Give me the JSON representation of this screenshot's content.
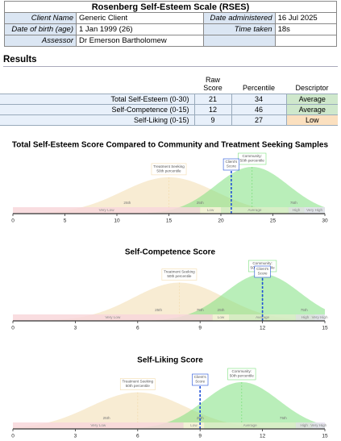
{
  "header": {
    "title": "Rosenberg Self-Esteem Scale (RSES)",
    "left": [
      {
        "label": "Client Name",
        "value": "Generic Client"
      },
      {
        "label": "Date of birth (age)",
        "value": "1 Jan 1999 (26)"
      },
      {
        "label": "Assessor",
        "value": "Dr Emerson Bartholomew"
      }
    ],
    "right": [
      {
        "label": "Date administered",
        "value": "16 Jul 2025"
      },
      {
        "label": "Time taken",
        "value": "18s"
      }
    ]
  },
  "results": {
    "title": "Results",
    "columns": [
      "Raw Score",
      "Percentile",
      "Descriptor"
    ],
    "rows": [
      {
        "label": "Total Self-Esteem (0-30)",
        "raw": 21,
        "percentile": 34,
        "descriptor": "Average",
        "color": "#cfe8cc"
      },
      {
        "label": "Self-Competence (0-15)",
        "raw": 12,
        "percentile": 46,
        "descriptor": "Average",
        "color": "#cfe8cc"
      },
      {
        "label": "Self-Liking (0-15)",
        "raw": 9,
        "percentile": 27,
        "descriptor": "Low",
        "color": "#fbe0bf"
      }
    ]
  },
  "chart_data": [
    {
      "type": "density",
      "title": "Total Self-Esteem Score Compared to Community and Treatment Seeking Samples",
      "xlim": [
        0,
        30
      ],
      "xticks": [
        0,
        5,
        10,
        15,
        20,
        25,
        30
      ],
      "distributions": [
        {
          "label": [
            "Treatment Seeking",
            "50th percentile"
          ],
          "mean": 15,
          "sd": 4.5,
          "color": "#f3dcae"
        },
        {
          "label": [
            "Community:",
            "50th percentile"
          ],
          "mean": 23,
          "sd": 3.5,
          "color": "#7fe07f"
        }
      ],
      "bands": [
        {
          "label": "Very Low",
          "from": 0,
          "to": 18,
          "color": "#f8d7da"
        },
        {
          "label": "Low",
          "from": 18,
          "to": 20,
          "color": "#fdf3dc"
        },
        {
          "label": "Average",
          "from": 20,
          "to": 26.5,
          "color": "#dcedc8"
        },
        {
          "label": "High",
          "from": 26.5,
          "to": 28,
          "color": "#e0e0e0"
        },
        {
          "label": "Very High",
          "from": 28,
          "to": 30,
          "color": "#e6e0f0"
        }
      ],
      "percentile_marks": [
        {
          "value": 11,
          "label": "25th"
        },
        {
          "value": 18,
          "label": "25th"
        },
        {
          "value": 27,
          "label": "75th"
        }
      ],
      "client": {
        "value": 21,
        "label": [
          "Client's",
          "Score"
        ]
      }
    },
    {
      "type": "density",
      "title": "Self-Competence Score",
      "xlim": [
        0,
        15
      ],
      "xticks": [
        0,
        3,
        6,
        9,
        12,
        15
      ],
      "distributions": [
        {
          "label": [
            "Treatment Seeking",
            "50th percentile"
          ],
          "mean": 8,
          "sd": 2.2,
          "color": "#f3dcae"
        },
        {
          "label": [
            "Community:",
            "50th percentile"
          ],
          "mean": 12,
          "sd": 1.8,
          "color": "#7fe07f"
        }
      ],
      "bands": [
        {
          "label": "Very Low",
          "from": 0,
          "to": 9.6,
          "color": "#f8d7da"
        },
        {
          "label": "Low",
          "from": 9.6,
          "to": 10.4,
          "color": "#fdf3dc"
        },
        {
          "label": "Average",
          "from": 10.4,
          "to": 13.6,
          "color": "#dcedc8"
        },
        {
          "label": "High",
          "from": 13.6,
          "to": 14.5,
          "color": "#e0e0e0"
        },
        {
          "label": "Very High",
          "from": 14.5,
          "to": 15,
          "color": "#e6e0f0"
        }
      ],
      "percentile_marks": [
        {
          "value": 7,
          "label": "25th"
        },
        {
          "value": 9,
          "label": "75th"
        },
        {
          "value": 10,
          "label": "25th"
        },
        {
          "value": 14,
          "label": "75th"
        }
      ],
      "client": {
        "value": 12,
        "label": [
          "Client's",
          "Score"
        ]
      }
    },
    {
      "type": "density",
      "title": "Self-Liking Score",
      "xlim": [
        0,
        15
      ],
      "xticks": [
        0,
        3,
        6,
        9,
        12,
        15
      ],
      "distributions": [
        {
          "label": [
            "Treatment Seeking",
            "50th percentile"
          ],
          "mean": 6,
          "sd": 2.3,
          "color": "#f3dcae"
        },
        {
          "label": [
            "Community:",
            "50th percentile"
          ],
          "mean": 11,
          "sd": 1.8,
          "color": "#7fe07f"
        }
      ],
      "bands": [
        {
          "label": "Very Low",
          "from": 0,
          "to": 8.2,
          "color": "#f8d7da"
        },
        {
          "label": "Low",
          "from": 8.2,
          "to": 9.2,
          "color": "#fdf3dc"
        },
        {
          "label": "Average",
          "from": 9.2,
          "to": 13.6,
          "color": "#dcedc8"
        },
        {
          "label": "High",
          "from": 13.6,
          "to": 14.4,
          "color": "#e0e0e0"
        },
        {
          "label": "Very High",
          "from": 14.4,
          "to": 15,
          "color": "#e6e0f0"
        }
      ],
      "percentile_marks": [
        {
          "value": 4.5,
          "label": "25th"
        },
        {
          "value": 9,
          "label": "25th"
        },
        {
          "value": 13,
          "label": "75th"
        }
      ],
      "client": {
        "value": 9,
        "label": [
          "Client's",
          "Score"
        ]
      }
    }
  ]
}
